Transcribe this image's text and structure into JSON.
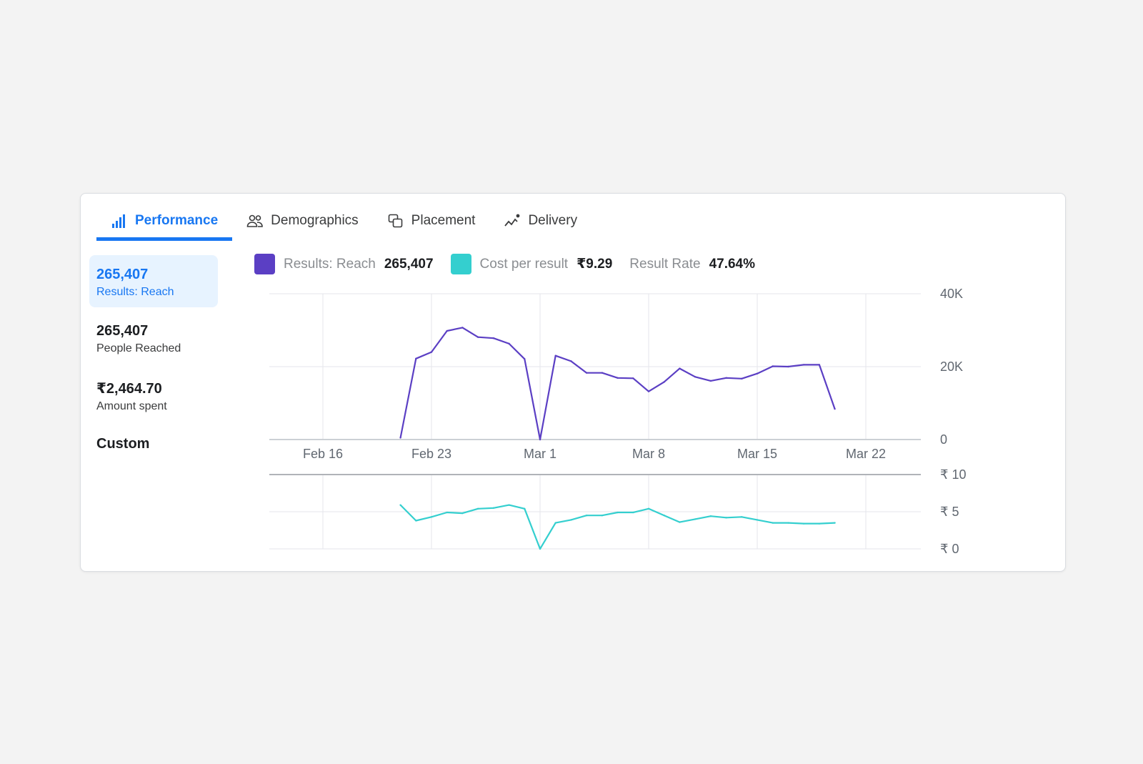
{
  "tabs": [
    {
      "label": "Performance",
      "icon": "bar-chart-icon",
      "active": true
    },
    {
      "label": "Demographics",
      "icon": "people-icon",
      "active": false
    },
    {
      "label": "Placement",
      "icon": "placement-icon",
      "active": false
    },
    {
      "label": "Delivery",
      "icon": "delivery-icon",
      "active": false
    }
  ],
  "metrics": [
    {
      "value": "265,407",
      "label": "Results: Reach",
      "selected": true
    },
    {
      "value": "265,407",
      "label": "People Reached",
      "selected": false
    },
    {
      "value": "₹2,464.70",
      "label": "Amount spent",
      "selected": false
    }
  ],
  "custom_label": "Custom",
  "legend": {
    "reach": {
      "label": "Results: Reach",
      "value": "265,407",
      "color": "#5b3fc4"
    },
    "cost": {
      "label": "Cost per result",
      "value": "₹9.29",
      "color": "#34cfcf"
    },
    "rate": {
      "label": "Result Rate",
      "value": "47.64%"
    }
  },
  "colors": {
    "accent": "#1877f2",
    "reach": "#5b3fc4",
    "cost": "#34cfcf"
  },
  "chart_data": [
    {
      "type": "line",
      "series": [
        {
          "name": "Results: Reach",
          "x": [
            "Feb 21",
            "Feb 22",
            "Feb 23",
            "Feb 24",
            "Feb 25",
            "Feb 26",
            "Feb 27",
            "Feb 28",
            "Feb 29",
            "Mar 1",
            "Mar 2",
            "Mar 3",
            "Mar 4",
            "Mar 5",
            "Mar 6",
            "Mar 7",
            "Mar 8",
            "Mar 9",
            "Mar 10",
            "Mar 11",
            "Mar 12",
            "Mar 13",
            "Mar 14",
            "Mar 15",
            "Mar 16",
            "Mar 17",
            "Mar 18",
            "Mar 19",
            "Mar 20"
          ],
          "values": [
            500,
            22200,
            24000,
            29800,
            30700,
            28100,
            27800,
            26300,
            22100,
            0,
            23000,
            21500,
            18300,
            18300,
            16900,
            16800,
            13200,
            15800,
            19500,
            17200,
            16100,
            16900,
            16700,
            18100,
            20100,
            20000,
            20500,
            20500,
            8400
          ]
        }
      ],
      "xticks": [
        "Feb 16",
        "Feb 23",
        "Mar 1",
        "Mar 8",
        "Mar 15",
        "Mar 22"
      ],
      "yticks": [
        "0",
        "20K",
        "40K"
      ],
      "ylim": [
        0,
        40000
      ]
    },
    {
      "type": "line",
      "series": [
        {
          "name": "Cost per result",
          "x": [
            "Feb 21",
            "Feb 22",
            "Feb 23",
            "Feb 24",
            "Feb 25",
            "Feb 26",
            "Feb 27",
            "Feb 28",
            "Feb 29",
            "Mar 1",
            "Mar 2",
            "Mar 3",
            "Mar 4",
            "Mar 5",
            "Mar 6",
            "Mar 7",
            "Mar 8",
            "Mar 9",
            "Mar 10",
            "Mar 11",
            "Mar 12",
            "Mar 13",
            "Mar 14",
            "Mar 15",
            "Mar 16",
            "Mar 17",
            "Mar 18",
            "Mar 19",
            "Mar 20"
          ],
          "values": [
            5.9,
            3.8,
            4.3,
            4.9,
            4.8,
            5.4,
            5.5,
            5.9,
            5.4,
            0,
            3.5,
            3.9,
            4.5,
            4.5,
            4.9,
            4.9,
            5.4,
            4.5,
            3.6,
            4.0,
            4.4,
            4.2,
            4.3,
            3.9,
            3.5,
            3.5,
            3.4,
            3.4,
            3.5
          ]
        }
      ],
      "yticks": [
        "₹ 0",
        "₹ 5",
        "₹ 10"
      ],
      "ylim": [
        0,
        10
      ]
    }
  ]
}
